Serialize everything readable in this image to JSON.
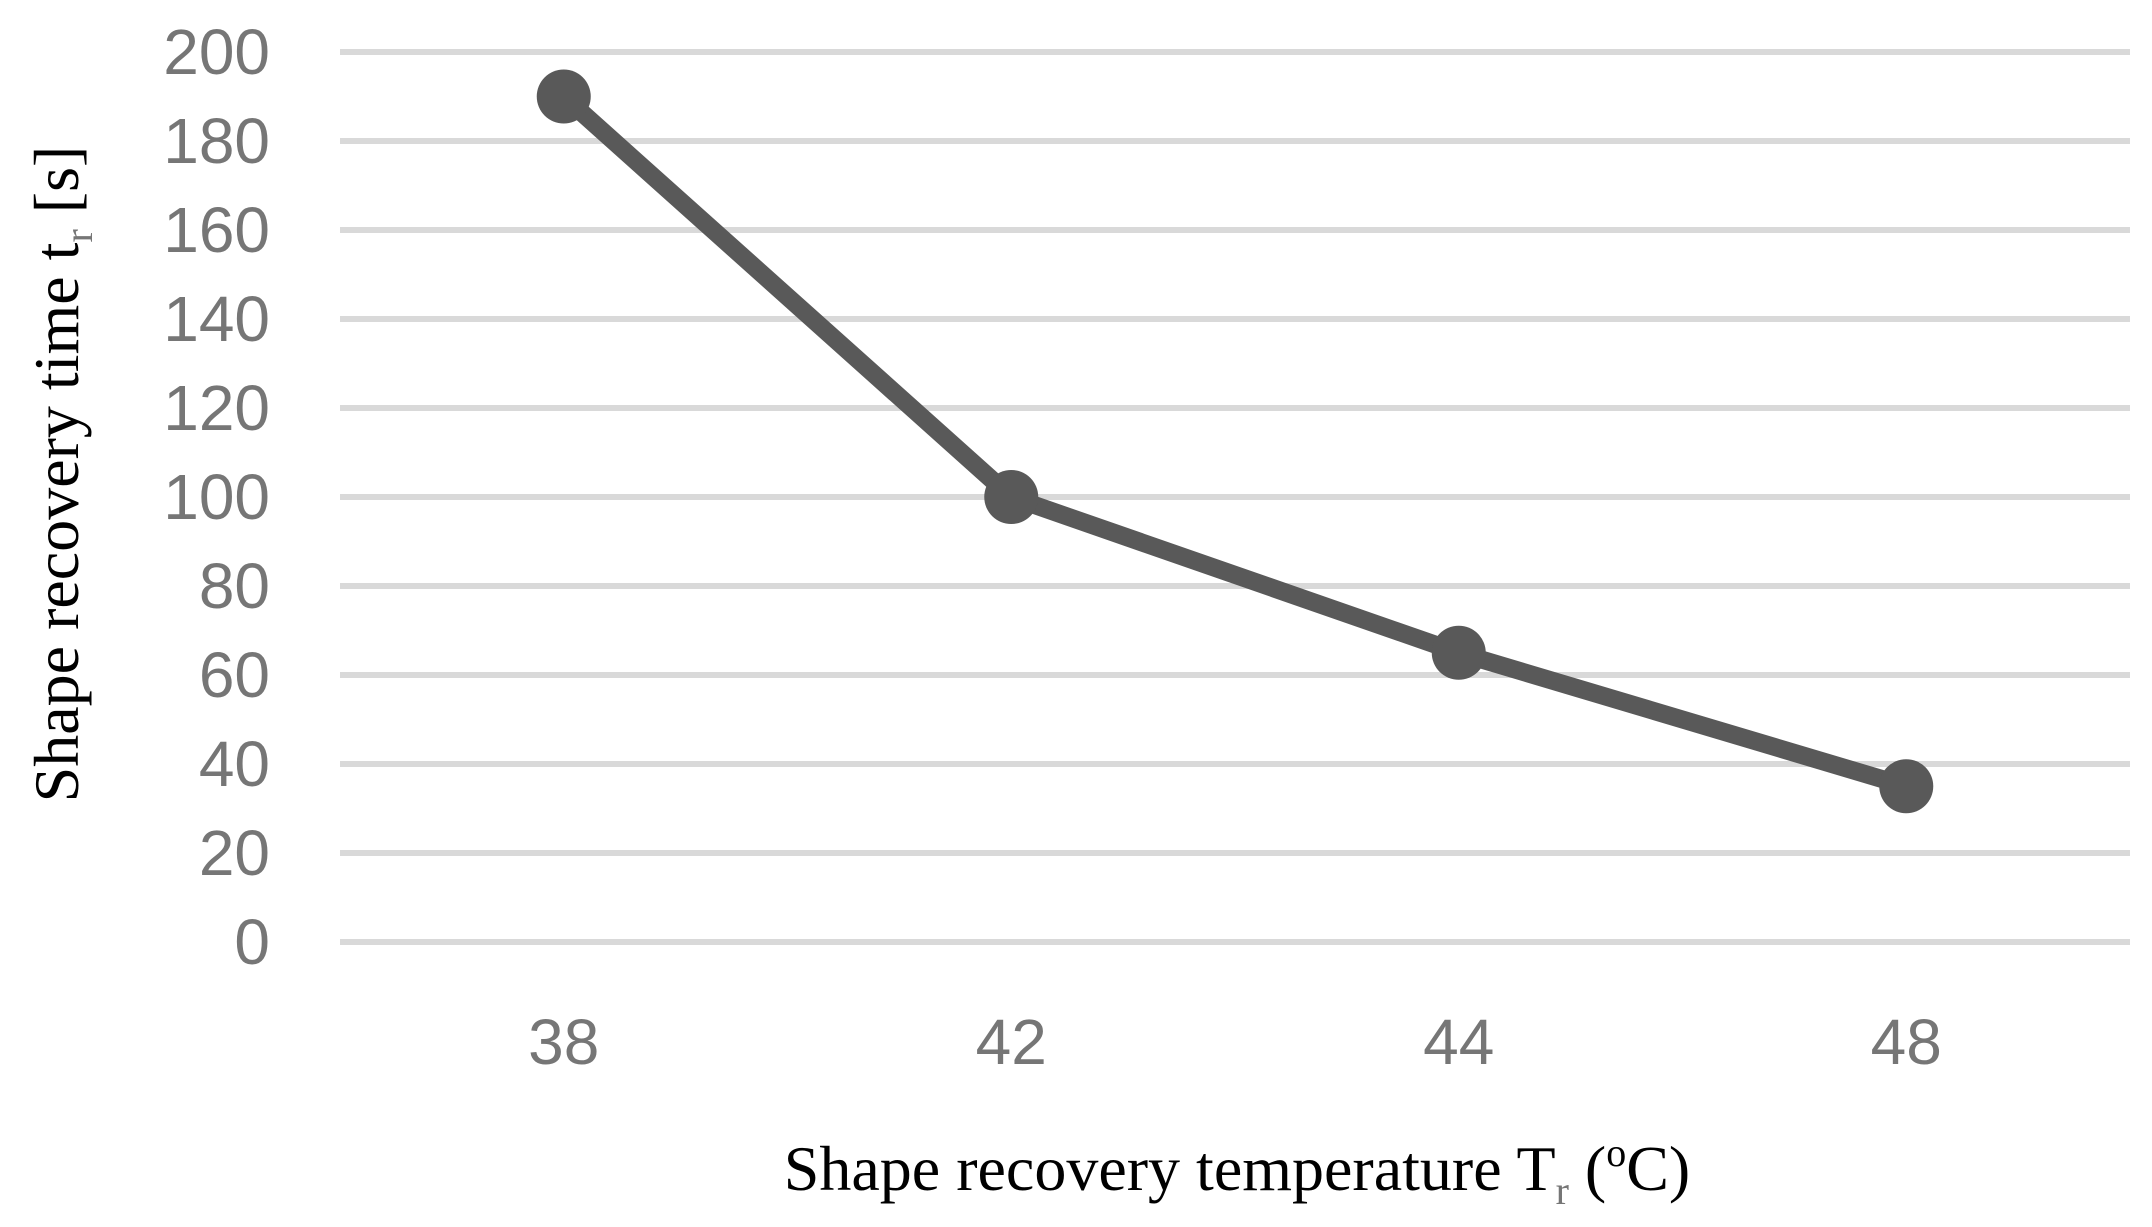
{
  "chart_data": {
    "type": "line",
    "categories": [
      "38",
      "42",
      "44",
      "48"
    ],
    "series": [
      {
        "name": "Shape recovery time",
        "values": [
          190,
          100,
          65,
          35
        ],
        "color": "#595959"
      }
    ],
    "xlabel": {
      "main": "Shape recovery temperature T",
      "sub": "r",
      "open": " (",
      "sup": "o",
      "close": "C)"
    },
    "ylabel": {
      "main": "Shape recovery  time t",
      "sub": "r",
      "unit": " [s]"
    },
    "ylim": [
      0,
      200
    ],
    "yticks": [
      "0",
      "20",
      "40",
      "60",
      "80",
      "100",
      "120",
      "140",
      "160",
      "180",
      "200"
    ],
    "grid": true,
    "legend": "none",
    "colors": {
      "grid": "#d9d9d9",
      "tick_text": "#767676",
      "series": "#595959"
    }
  }
}
